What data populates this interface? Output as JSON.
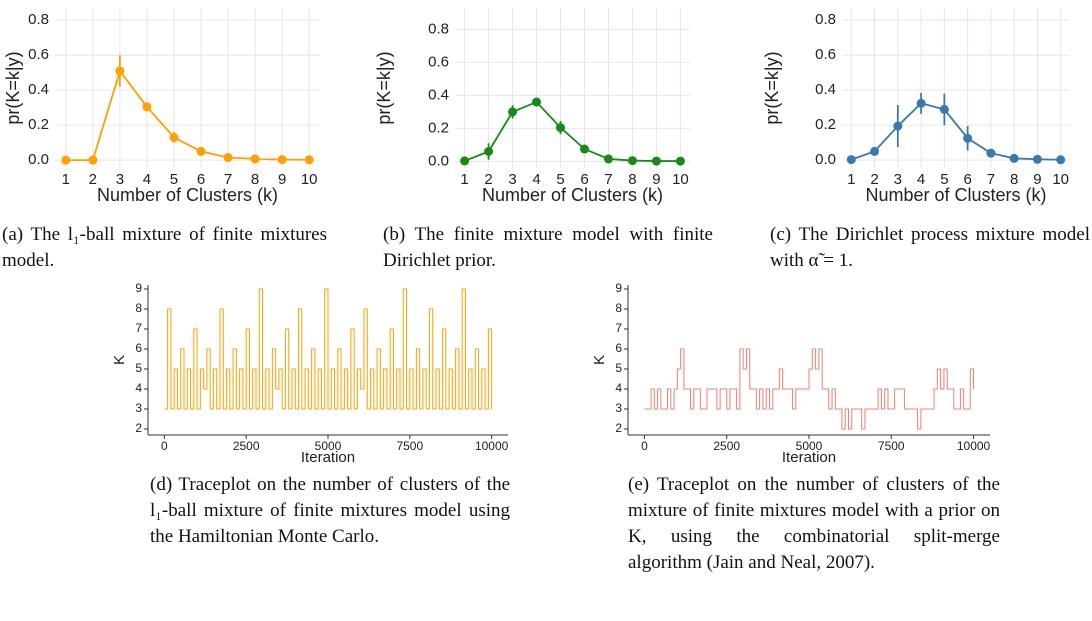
{
  "chart_data": [
    {
      "type": "line",
      "markers": true,
      "grid": true,
      "color": "#ffa000",
      "caption": "(a) The l₁-ball mixture of finite mixtures model.",
      "xlabel": "Number of Clusters (k)",
      "ylabel": "pr(K=k|y)",
      "x": [
        1,
        2,
        3,
        4,
        5,
        6,
        7,
        8,
        9,
        10
      ],
      "values": [
        0,
        0,
        0.51,
        0.305,
        0.13,
        0.05,
        0.015,
        0.007,
        0.003,
        0.002
      ],
      "errors": [
        0,
        0,
        0.09,
        0.025,
        0.03,
        0.008,
        0.004,
        0.002,
        0.001,
        0.001
      ],
      "xlim": [
        0.6,
        10.4
      ],
      "ylim": [
        -0.045,
        0.87
      ],
      "xticks": [
        1,
        2,
        3,
        4,
        5,
        6,
        7,
        8,
        9,
        10
      ],
      "yticks": [
        {
          "value": 0,
          "label": "0.0"
        },
        {
          "value": 0.2,
          "label": "0.2"
        },
        {
          "value": 0.4,
          "label": "0.4"
        },
        {
          "value": 0.6,
          "label": "0.6"
        },
        {
          "value": 0.8,
          "label": "0.8"
        }
      ]
    },
    {
      "type": "line",
      "markers": true,
      "grid": true,
      "color": "#178a17",
      "caption": "(b) The finite mixture model with finite Dirichlet prior.",
      "xlabel": "Number of Clusters (k)",
      "ylabel": "pr(K=k|y)",
      "x": [
        1,
        2,
        3,
        4,
        5,
        6,
        7,
        8,
        9,
        10
      ],
      "values": [
        0.003,
        0.06,
        0.3,
        0.36,
        0.205,
        0.075,
        0.015,
        0.005,
        0.002,
        0.002
      ],
      "errors": [
        0.002,
        0.05,
        0.04,
        0.025,
        0.04,
        0.02,
        0.005,
        0.002,
        0.001,
        0.001
      ],
      "xlim": [
        0.6,
        10.4
      ],
      "ylim": [
        -0.04,
        0.93
      ],
      "xticks": [
        1,
        2,
        3,
        4,
        5,
        6,
        7,
        8,
        9,
        10
      ],
      "yticks": [
        {
          "value": 0,
          "label": "0.0"
        },
        {
          "value": 0.2,
          "label": "0.2"
        },
        {
          "value": 0.4,
          "label": "0.4"
        },
        {
          "value": 0.6,
          "label": "0.6"
        },
        {
          "value": 0.8,
          "label": "0.8"
        }
      ]
    },
    {
      "type": "line",
      "markers": true,
      "grid": true,
      "color": "#3a78b0",
      "caption": "(c) The Dirichlet process mixture model with α̃ = 1.",
      "xlabel": "Number of Clusters (k)",
      "ylabel": "pr(K=k|y)",
      "x": [
        1,
        2,
        3,
        4,
        5,
        6,
        7,
        8,
        9,
        10
      ],
      "values": [
        0.003,
        0.05,
        0.195,
        0.325,
        0.29,
        0.125,
        0.04,
        0.01,
        0.005,
        0.002
      ],
      "errors": [
        0.002,
        0.01,
        0.12,
        0.06,
        0.09,
        0.07,
        0.01,
        0.003,
        0.002,
        0.001
      ],
      "xlim": [
        0.6,
        10.4
      ],
      "ylim": [
        -0.045,
        0.87
      ],
      "xticks": [
        1,
        2,
        3,
        4,
        5,
        6,
        7,
        8,
        9,
        10
      ],
      "yticks": [
        {
          "value": 0,
          "label": "0.0"
        },
        {
          "value": 0.2,
          "label": "0.2"
        },
        {
          "value": 0.4,
          "label": "0.4"
        },
        {
          "value": 0.6,
          "label": "0.6"
        },
        {
          "value": 0.8,
          "label": "0.8"
        }
      ]
    },
    {
      "type": "line",
      "step": true,
      "grid": false,
      "color": "#ffa000",
      "caption": "(d) Traceplot on the number of clusters of the l₁-ball mixture of finite mixtures model using the Hamiltonian Monte Carlo.",
      "xlabel": "Iteration",
      "ylabel": "K",
      "x": [
        0,
        100,
        200,
        300,
        400,
        500,
        600,
        700,
        800,
        900,
        1000,
        1100,
        1200,
        1300,
        1400,
        1500,
        1600,
        1700,
        1800,
        1900,
        2000,
        2100,
        2200,
        2300,
        2400,
        2500,
        2600,
        2700,
        2800,
        2900,
        3000,
        3100,
        3200,
        3300,
        3400,
        3500,
        3600,
        3700,
        3800,
        3900,
        4000,
        4100,
        4200,
        4300,
        4400,
        4500,
        4600,
        4700,
        4800,
        4900,
        5000,
        5100,
        5200,
        5300,
        5400,
        5500,
        5600,
        5700,
        5800,
        5900,
        6000,
        6100,
        6200,
        6300,
        6400,
        6500,
        6600,
        6700,
        6800,
        6900,
        7000,
        7100,
        7200,
        7300,
        7400,
        7500,
        7600,
        7700,
        7800,
        7900,
        8000,
        8100,
        8200,
        8300,
        8400,
        8500,
        8600,
        8700,
        8800,
        8900,
        9000,
        9100,
        9200,
        9300,
        9400,
        9500,
        9600,
        9700,
        9800,
        9900,
        10000
      ],
      "values": [
        3,
        8,
        3,
        5,
        3,
        6,
        3,
        5,
        3,
        7,
        3,
        5,
        4,
        6,
        3,
        5,
        3,
        8,
        3,
        5,
        3,
        6,
        3,
        5,
        3,
        7,
        3,
        5,
        3,
        9,
        3,
        5,
        3,
        6,
        4,
        5,
        3,
        7,
        3,
        5,
        3,
        8,
        3,
        5,
        3,
        6,
        3,
        5,
        3,
        9,
        3,
        5,
        3,
        6,
        3,
        5,
        3,
        7,
        3,
        5,
        4,
        8,
        3,
        5,
        3,
        6,
        3,
        5,
        3,
        7,
        3,
        5,
        3,
        9,
        3,
        5,
        3,
        6,
        3,
        5,
        3,
        8,
        3,
        5,
        3,
        7,
        3,
        5,
        3,
        6,
        3,
        9,
        3,
        5,
        3,
        6,
        3,
        5,
        3,
        7,
        3
      ],
      "xlim": [
        -500,
        10500
      ],
      "ylim": [
        1.7,
        9.2
      ],
      "xticks": [
        0,
        2500,
        5000,
        7500,
        10000
      ],
      "yticks": [
        2,
        3,
        4,
        5,
        6,
        7,
        8,
        9
      ]
    },
    {
      "type": "line",
      "step": true,
      "grid": false,
      "color": "#f08070",
      "caption": "(e) Traceplot on the number of clusters of the mixture of finite mixtures model with a prior on K, using the combinatorial split-merge algorithm (Jain and Neal, 2007).",
      "xlabel": "Iteration",
      "ylabel": "K",
      "x": [
        0,
        100,
        200,
        300,
        400,
        500,
        600,
        700,
        800,
        900,
        1000,
        1100,
        1200,
        1300,
        1400,
        1500,
        1600,
        1700,
        1800,
        1900,
        2000,
        2100,
        2200,
        2300,
        2400,
        2500,
        2600,
        2700,
        2800,
        2900,
        3000,
        3100,
        3200,
        3300,
        3400,
        3500,
        3600,
        3700,
        3800,
        3900,
        4000,
        4100,
        4200,
        4300,
        4400,
        4500,
        4600,
        4700,
        4800,
        4900,
        5000,
        5100,
        5200,
        5300,
        5400,
        5500,
        5600,
        5700,
        5800,
        5900,
        6000,
        6100,
        6200,
        6300,
        6400,
        6500,
        6600,
        6700,
        6800,
        6900,
        7000,
        7100,
        7200,
        7300,
        7400,
        7500,
        7600,
        7700,
        7800,
        7900,
        8000,
        8100,
        8200,
        8300,
        8400,
        8500,
        8600,
        8700,
        8800,
        8900,
        9000,
        9100,
        9200,
        9300,
        9400,
        9500,
        9600,
        9700,
        9800,
        9900,
        10000
      ],
      "values": [
        3,
        3,
        4,
        3,
        4,
        3,
        3,
        4,
        3,
        4,
        5,
        6,
        4,
        4,
        3,
        4,
        4,
        3,
        3,
        4,
        4,
        4,
        3,
        4,
        4,
        3,
        4,
        4,
        3,
        6,
        5,
        6,
        4,
        4,
        3,
        4,
        3,
        4,
        3,
        4,
        4,
        5,
        4,
        4,
        4,
        3,
        4,
        4,
        4,
        4,
        5,
        6,
        5,
        6,
        4,
        4,
        3,
        4,
        3,
        3,
        2,
        3,
        2,
        3,
        3,
        3,
        2,
        3,
        3,
        3,
        3,
        4,
        3,
        4,
        3,
        3,
        4,
        4,
        4,
        3,
        3,
        3,
        3,
        2,
        3,
        3,
        3,
        3,
        4,
        5,
        4,
        5,
        4,
        4,
        3,
        3,
        4,
        3,
        3,
        5,
        4
      ],
      "xlim": [
        -500,
        10500
      ],
      "ylim": [
        1.7,
        9.2
      ],
      "xticks": [
        0,
        2500,
        5000,
        7500,
        10000
      ],
      "yticks": [
        2,
        3,
        4,
        5,
        6,
        7,
        8,
        9
      ]
    }
  ]
}
